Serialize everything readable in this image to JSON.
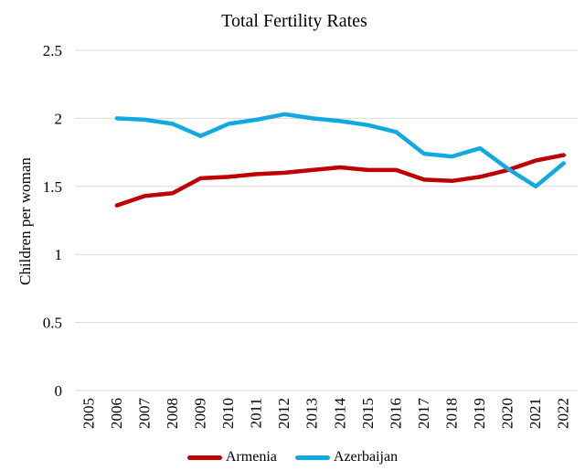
{
  "chart_data": {
    "type": "line",
    "title": "Total Fertility Rates",
    "xlabel": "",
    "ylabel": "Children per woman",
    "ylim": [
      0,
      2.5
    ],
    "yticks": [
      0,
      0.5,
      1,
      1.5,
      2,
      2.5
    ],
    "ytick_labels": [
      "0",
      "0.5",
      "1",
      "1.5",
      "2",
      "2.5"
    ],
    "grid": true,
    "legend_position": "bottom",
    "categories": [
      "2005",
      "2006",
      "2007",
      "2008",
      "2009",
      "2010",
      "2011",
      "2012",
      "2013",
      "2014",
      "2015",
      "2016",
      "2017",
      "2018",
      "2019",
      "2020",
      "2021",
      "2022"
    ],
    "series": [
      {
        "name": "Armenia",
        "color": "#c00000",
        "values": [
          null,
          1.36,
          1.43,
          1.45,
          1.56,
          1.57,
          1.59,
          1.6,
          1.62,
          1.64,
          1.62,
          1.62,
          1.55,
          1.54,
          1.57,
          1.62,
          1.69,
          1.73
        ]
      },
      {
        "name": "Azerbaijan",
        "color": "#12a9e0",
        "values": [
          null,
          2.0,
          1.99,
          1.96,
          1.87,
          1.96,
          1.99,
          2.03,
          2.0,
          1.98,
          1.95,
          1.9,
          1.74,
          1.72,
          1.78,
          1.63,
          1.5,
          1.67
        ]
      }
    ]
  }
}
